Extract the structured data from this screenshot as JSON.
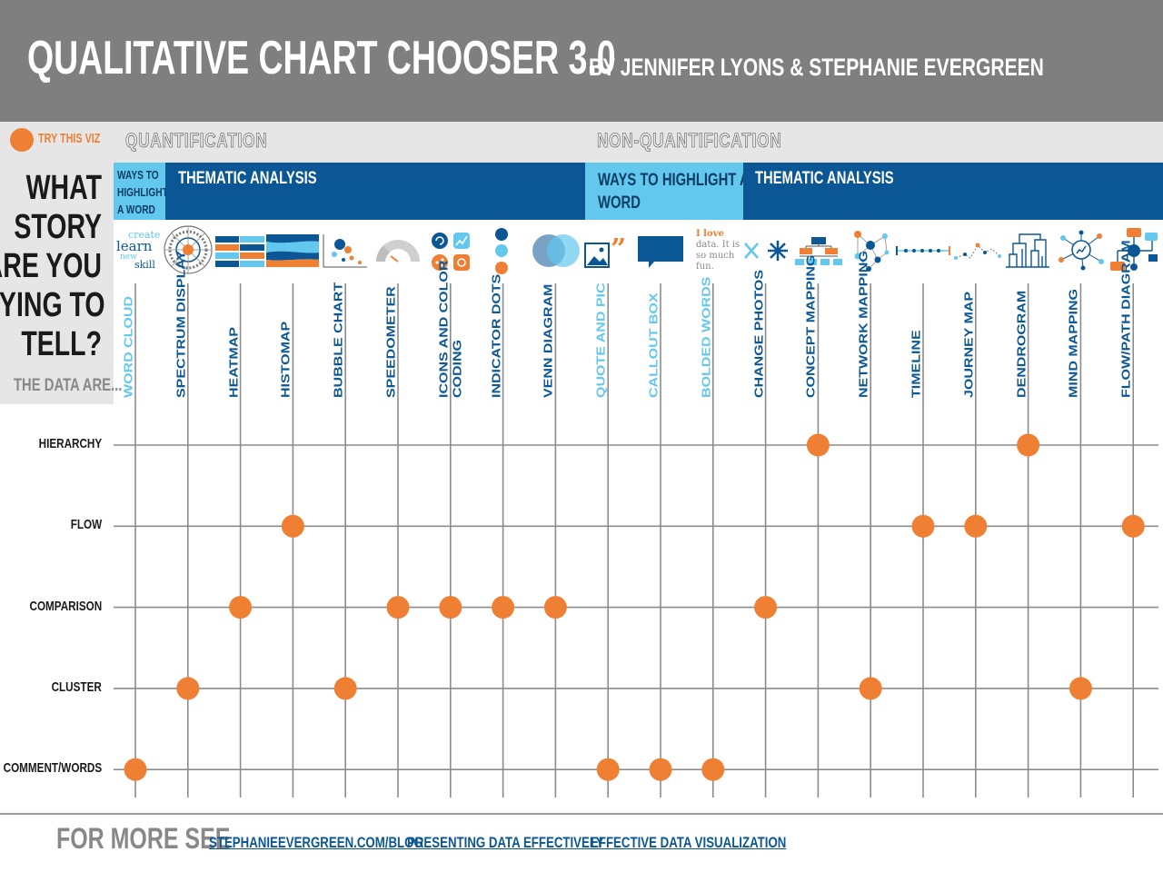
{
  "header": {
    "title": "QUALITATIVE CHART CHOOSER 3.0",
    "byline": "BY JENNIFER LYONS & STEPHANIE EVERGREEN"
  },
  "legend": {
    "label": "TRY THIS VIZ",
    "dot_color": "#ef7f33"
  },
  "sections": {
    "quantification": "QUANTIFICATION",
    "non_quantification": "NON-QUANTIFICATION"
  },
  "bands": {
    "quant_word": [
      "WAYS TO",
      "HIGHLIGHT",
      "A WORD"
    ],
    "quant_thematic": "THEMATIC ANALYSIS",
    "nonquant_word": [
      "WAYS TO HIGHLIGHT A",
      "WORD"
    ],
    "nonquant_thematic": "THEMATIC ANALYSIS"
  },
  "question": [
    "WHAT",
    "STORY",
    "ARE YOU",
    "TRYING TO",
    "TELL?"
  ],
  "data_are": "THE DATA ARE...",
  "colors": {
    "orange": "#ef7f33",
    "dark_blue": "#0b5795",
    "light_blue": "#63c8ee",
    "gray": "#7f7f7f"
  },
  "icons": {
    "word_cloud_words": [
      "create",
      "learn",
      "new",
      "skill"
    ],
    "bolded_words_text": [
      "I love",
      "data. It is",
      "so much",
      "fun."
    ]
  },
  "matrix": {
    "rows": [
      "HIERARCHY",
      "FLOW",
      "COMPARISON",
      "CLUSTER",
      "COMMENT/WORDS"
    ],
    "columns": [
      {
        "label": [
          "WORD CLOUD"
        ],
        "color": "light",
        "icon": "word-cloud-icon"
      },
      {
        "label": [
          "SPECTRUM DISPLAY"
        ],
        "color": "dark",
        "icon": "spectrum-display-icon"
      },
      {
        "label": [
          "HEATMAP"
        ],
        "color": "dark",
        "icon": "heatmap-icon"
      },
      {
        "label": [
          "HISTOMAP"
        ],
        "color": "dark",
        "icon": "histomap-icon"
      },
      {
        "label": [
          "BUBBLE CHART"
        ],
        "color": "dark",
        "icon": "bubble-chart-icon"
      },
      {
        "label": [
          "SPEEDOMETER"
        ],
        "color": "dark",
        "icon": "speedometer-icon"
      },
      {
        "label": [
          "ICONS AND COLOR",
          "CODING"
        ],
        "color": "dark",
        "icon": "icons-color-coding-icon"
      },
      {
        "label": [
          "INDICATOR DOTS"
        ],
        "color": "dark",
        "icon": "indicator-dots-icon"
      },
      {
        "label": [
          "VENN DIAGRAM"
        ],
        "color": "dark",
        "icon": "venn-diagram-icon"
      },
      {
        "label": [
          "QUOTE AND PIC"
        ],
        "color": "light",
        "icon": "quote-pic-icon"
      },
      {
        "label": [
          "CALLOUT BOX"
        ],
        "color": "light",
        "icon": "callout-box-icon"
      },
      {
        "label": [
          "BOLDED WORDS"
        ],
        "color": "light",
        "icon": "bolded-words-icon"
      },
      {
        "label": [
          "CHANGE PHOTOS"
        ],
        "color": "dark",
        "icon": "change-photos-icon"
      },
      {
        "label": [
          "CONCEPT MAPPING"
        ],
        "color": "dark",
        "icon": "concept-mapping-icon"
      },
      {
        "label": [
          "NETWORK MAPPING"
        ],
        "color": "dark",
        "icon": "network-mapping-icon"
      },
      {
        "label": [
          "TIMELINE"
        ],
        "color": "dark",
        "icon": "timeline-icon"
      },
      {
        "label": [
          "JOURNEY MAP"
        ],
        "color": "dark",
        "icon": "journey-map-icon"
      },
      {
        "label": [
          "DENDROGRAM"
        ],
        "color": "dark",
        "icon": "dendrogram-icon"
      },
      {
        "label": [
          "MIND MAPPING"
        ],
        "color": "dark",
        "icon": "mind-mapping-icon"
      },
      {
        "label": [
          "FLOW/PATH DIAGRAM"
        ],
        "color": "dark",
        "icon": "flow-path-diagram-icon"
      }
    ],
    "dots": [
      {
        "col": 0,
        "row": 4
      },
      {
        "col": 1,
        "row": 3
      },
      {
        "col": 2,
        "row": 2
      },
      {
        "col": 3,
        "row": 1
      },
      {
        "col": 4,
        "row": 3
      },
      {
        "col": 5,
        "row": 2
      },
      {
        "col": 6,
        "row": 2
      },
      {
        "col": 7,
        "row": 2
      },
      {
        "col": 8,
        "row": 2
      },
      {
        "col": 9,
        "row": 4
      },
      {
        "col": 10,
        "row": 4
      },
      {
        "col": 11,
        "row": 4
      },
      {
        "col": 12,
        "row": 2
      },
      {
        "col": 13,
        "row": 0
      },
      {
        "col": 14,
        "row": 3
      },
      {
        "col": 15,
        "row": 1
      },
      {
        "col": 16,
        "row": 1
      },
      {
        "col": 17,
        "row": 0
      },
      {
        "col": 18,
        "row": 3
      },
      {
        "col": 19,
        "row": 1
      }
    ]
  },
  "footer": {
    "label": "FOR MORE SEE",
    "links": [
      "STEPHANIEEVERGREEN.COM/BLOG",
      "PRESENTING DATA EFFECTIVELY",
      "EFFECTIVE DATA VISUALIZATION"
    ]
  }
}
